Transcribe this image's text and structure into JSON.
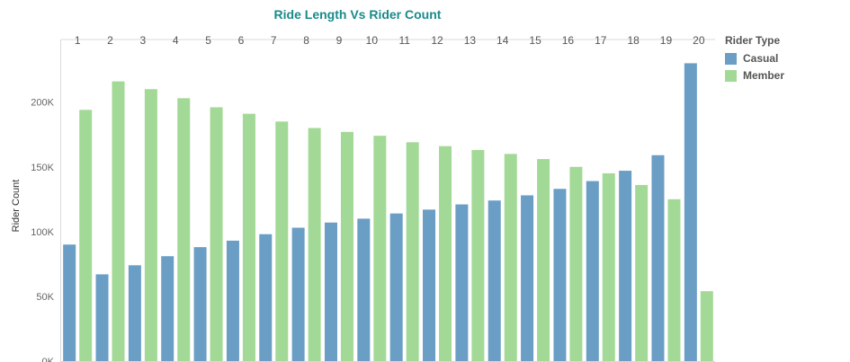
{
  "chart_data": {
    "type": "bar",
    "title": "Ride Length Vs Rider Count",
    "xlabel": "",
    "ylabel": "Rider Count",
    "categories": [
      "1",
      "2",
      "3",
      "4",
      "5",
      "6",
      "7",
      "8",
      "9",
      "10",
      "11",
      "12",
      "13",
      "14",
      "15",
      "16",
      "17",
      "18",
      "19",
      "20"
    ],
    "series": [
      {
        "name": "Casual",
        "color": "#6a9ec5",
        "values": [
          90000,
          67000,
          74000,
          81000,
          88000,
          93000,
          98000,
          103000,
          107000,
          110000,
          114000,
          117000,
          121000,
          124000,
          128000,
          133000,
          139000,
          147000,
          159000,
          230000
        ]
      },
      {
        "name": "Member",
        "color": "#a3d996",
        "values": [
          194000,
          216000,
          210000,
          203000,
          196000,
          191000,
          185000,
          180000,
          177000,
          174000,
          169000,
          166000,
          163000,
          160000,
          156000,
          150000,
          145000,
          136000,
          125000,
          54000
        ]
      }
    ],
    "ylim": [
      0,
      240000
    ],
    "yticks": [
      0,
      50000,
      100000,
      150000,
      200000
    ],
    "ytick_labels": [
      "0K",
      "50K",
      "100K",
      "150K",
      "200K"
    ],
    "x_axis_position": "top",
    "grid": false,
    "legend": {
      "title": "Rider Type",
      "position": "right"
    }
  }
}
